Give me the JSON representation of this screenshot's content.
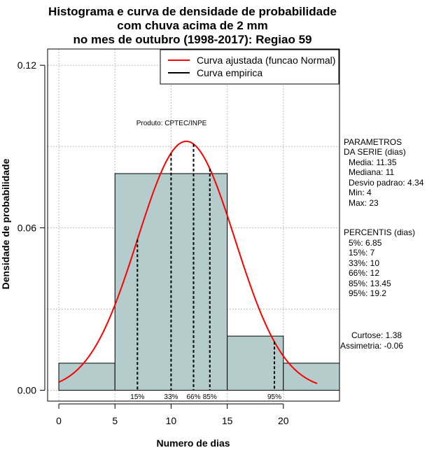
{
  "chart_data": {
    "type": "bar",
    "title_lines": [
      "Histograma e curva de densidade de probabilidade",
      "com chuva acima de 2 mm",
      "no mes de outubro (1998-2017): Regiao 59"
    ],
    "xlabel": "Numero de dias",
    "ylabel": "Densidade de probabilidade",
    "xlim": [
      -1,
      25
    ],
    "ylim": [
      -0.004,
      0.126
    ],
    "x_ticks": [
      0,
      5,
      10,
      15,
      20
    ],
    "y_ticks": [
      0.0,
      0.06,
      0.12
    ],
    "y_tick_labels": [
      "0.00",
      "0.06",
      "0.12"
    ],
    "grid": true,
    "histogram": [
      {
        "start": 0,
        "end": 5,
        "density": 0.01
      },
      {
        "start": 5,
        "end": 15,
        "density": 0.08
      },
      {
        "start": 15,
        "end": 20,
        "density": 0.02
      },
      {
        "start": 20,
        "end": 25,
        "density": 0.01
      }
    ],
    "normal_curve": {
      "name": "Curva ajustada (funcao Normal)",
      "mean": 11.35,
      "sd": 4.34,
      "x_range": [
        0,
        23
      ],
      "color": "#ff0000"
    },
    "empirical_series_name": "Curva empirica",
    "bar_color": "#b4cccc",
    "percentile_lines": [
      {
        "label": "15%",
        "x": 7
      },
      {
        "label": "33%",
        "x": 10
      },
      {
        "label": "66%",
        "x": 12
      },
      {
        "label": "85%",
        "x": 13.45
      },
      {
        "label": "95%",
        "x": 19.2
      }
    ],
    "annotation": "Produto: CPTEC/INPE",
    "legend_position": "top-right"
  },
  "side_panel": {
    "parametros": [
      "PARAMETROS",
      "DA SERIE (dias)",
      "Media: 11.35",
      "Mediana: 11",
      "Desvio padrao: 4.34",
      "Min: 4",
      "Max: 23"
    ],
    "percentis": [
      "PERCENTIS (dias)",
      "5%: 6.85",
      "15%: 7",
      "33%: 10",
      "66%: 12",
      "85%: 13.45",
      "95%: 19.2"
    ],
    "curtose": "Curtose: 1.38",
    "assimetria": "Assimetria: -0.06"
  }
}
